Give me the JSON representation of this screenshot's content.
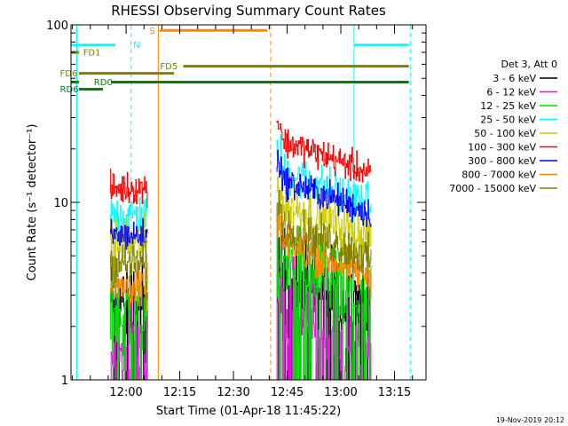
{
  "chart_data": {
    "type": "line",
    "title": "RHESSI Observing Summary Count Rates",
    "xlabel": "Start Time (01-Apr-18 11:45:22)",
    "ylabel": "Count Rate (s⁻¹ detector⁻¹)",
    "y_scale": "log",
    "ylim": [
      1,
      100
    ],
    "xlim_minutes": [
      -15.4,
      83.8
    ],
    "x_ticks": [
      {
        "minute": 0,
        "label": "12:00"
      },
      {
        "minute": 15,
        "label": "12:15"
      },
      {
        "minute": 30,
        "label": "12:30"
      },
      {
        "minute": 45,
        "label": "12:45"
      },
      {
        "minute": 60,
        "label": "13:00"
      },
      {
        "minute": 75,
        "label": "13:15"
      }
    ],
    "y_ticks": [
      {
        "value": 1,
        "label": "1"
      },
      {
        "value": 10,
        "label": "10"
      },
      {
        "value": 100,
        "label": "100"
      }
    ],
    "legend_header": "Det 3, Att 0",
    "legend_position": "right",
    "series": [
      {
        "name": "3 - 6 keV",
        "color": "#000000",
        "level1": 2.7,
        "level2": 2.7,
        "noise": 0.45
      },
      {
        "name": "6 - 12 keV",
        "color": "#ff00ff",
        "level1": 1.3,
        "level2": 1.6,
        "noise": 0.5
      },
      {
        "name": "12 - 25 keV",
        "color": "#00dd00",
        "level1": 2.4,
        "level2": 3.0,
        "noise": 0.4
      },
      {
        "name": "25 - 50 keV",
        "color": "#00ffff",
        "level1": 8.5,
        "level2": 10.0,
        "noise": 0.2
      },
      {
        "name": "50 - 100 keV",
        "color": "#cccc00",
        "level1": 5.8,
        "level2": 6.5,
        "noise": 0.25
      },
      {
        "name": "100 - 300 keV",
        "color": "#ff0000",
        "level1": 12.0,
        "level2": 15.0,
        "noise": 0.15
      },
      {
        "name": "300 - 800 keV",
        "color": "#0000ff",
        "level1": 6.5,
        "level2": 9.0,
        "noise": 0.15
      },
      {
        "name": "800 - 7000 keV",
        "color": "#ff8800",
        "level1": 3.3,
        "level2": 4.0,
        "noise": 0.2
      },
      {
        "name": "7000 - 15000 keV",
        "color": "#808000",
        "level1": 4.5,
        "level2": 5.0,
        "noise": 0.2
      }
    ],
    "data_intervals": [
      {
        "start": -4.5,
        "end": 6.0,
        "decay": false
      },
      {
        "start": 42.0,
        "end": 68.5,
        "decay": true
      }
    ],
    "vertical_lines": [
      {
        "minute": -13.8,
        "color": "#00ffff",
        "style": "solid"
      },
      {
        "minute": 1.4,
        "color": "#00ffff",
        "style": "dashed"
      },
      {
        "minute": 9.0,
        "color": "#ff8800",
        "style": "solid"
      },
      {
        "minute": 40.4,
        "color": "#ff8800",
        "style": "dashed"
      },
      {
        "minute": 63.7,
        "color": "#00ffff",
        "style": "solid"
      },
      {
        "minute": 79.4,
        "color": "#00ffff",
        "style": "dashed"
      }
    ],
    "flag_bars": [
      {
        "label": "N",
        "color": "#00ffff",
        "value": 77,
        "segments": [
          [
            -15.4,
            -3.0
          ],
          [
            63.7,
            79.0
          ]
        ],
        "label_minute": 2.0
      },
      {
        "label": "S",
        "color": "#ff8800",
        "value": 93,
        "segments": [
          [
            9.4,
            39.4
          ]
        ],
        "label_minute": 6.5
      },
      {
        "label": "FD1",
        "color": "#808000",
        "value": 70,
        "segments": [
          [
            -15.4,
            -13.2
          ]
        ],
        "label_minute": -12.0
      },
      {
        "label": "FD5",
        "color": "#808000",
        "value": 58.5,
        "segments": [
          [
            16.0,
            79.0
          ]
        ],
        "label_minute": 9.5
      },
      {
        "label": "FD6",
        "color": "#808000",
        "value": 53.3,
        "segments": [
          [
            -13.2,
            13.4
          ]
        ],
        "label_minute": -18.5
      },
      {
        "label": "RD0",
        "color": "#008000",
        "value": 47.6,
        "segments": [
          [
            -15.4,
            -13.2
          ],
          [
            -4.0,
            79.0
          ]
        ],
        "label_minute": -9.0
      },
      {
        "label": "RD6",
        "color": "#008000",
        "value": 43.4,
        "segments": [
          [
            -13.2,
            -6.5
          ]
        ],
        "label_minute": -18.5
      }
    ]
  },
  "timestamp": "19-Nov-2019 20:12"
}
